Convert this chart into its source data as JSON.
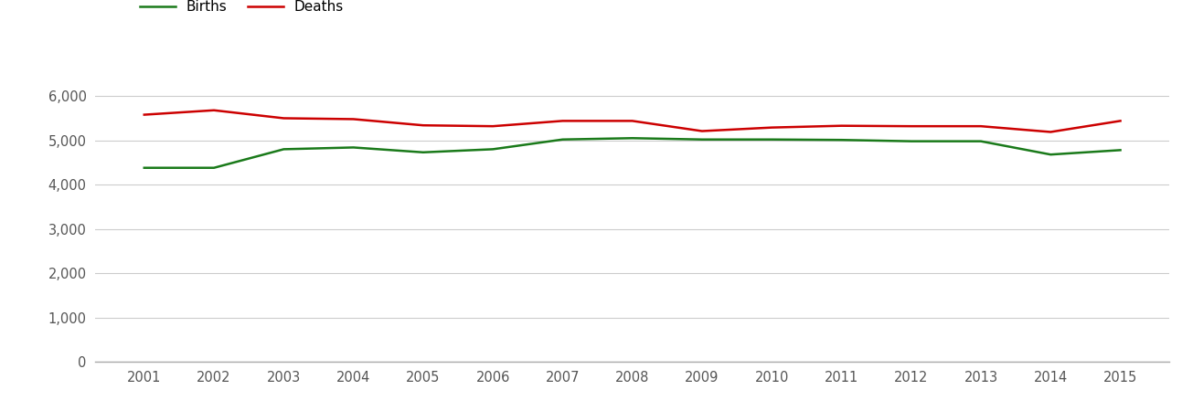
{
  "years": [
    2001,
    2002,
    2003,
    2004,
    2005,
    2006,
    2007,
    2008,
    2009,
    2010,
    2011,
    2012,
    2013,
    2014,
    2015
  ],
  "births": [
    4380,
    4380,
    4800,
    4840,
    4730,
    4800,
    5020,
    5050,
    5020,
    5020,
    5010,
    4980,
    4980,
    4680,
    4780
  ],
  "deaths": [
    5580,
    5680,
    5500,
    5480,
    5340,
    5320,
    5440,
    5440,
    5210,
    5290,
    5330,
    5320,
    5320,
    5190,
    5440
  ],
  "births_color": "#1a7a1a",
  "deaths_color": "#cc0000",
  "line_width": 1.8,
  "ylim": [
    0,
    6500
  ],
  "yticks": [
    0,
    1000,
    2000,
    3000,
    4000,
    5000,
    6000
  ],
  "background_color": "#ffffff",
  "grid_color": "#cccccc",
  "legend_labels": [
    "Births",
    "Deaths"
  ],
  "xlabel": "",
  "ylabel": "",
  "tick_color": "#555555",
  "tick_fontsize": 10.5
}
